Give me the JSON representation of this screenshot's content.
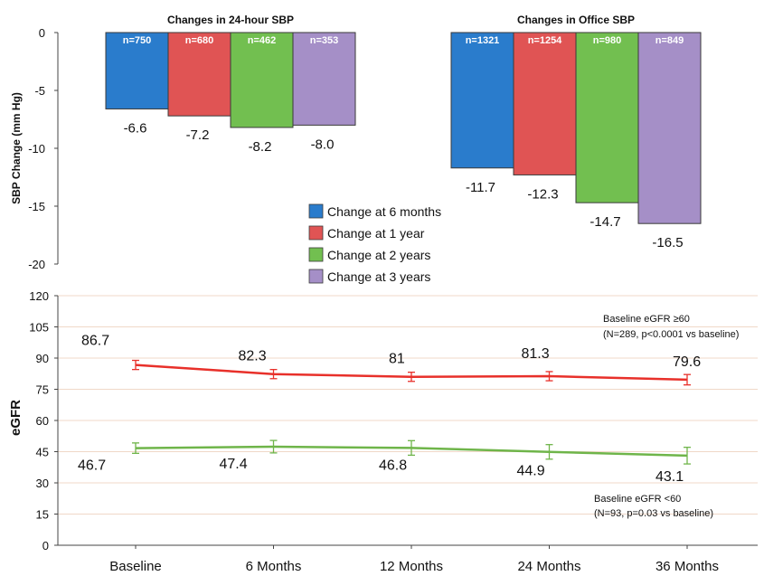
{
  "chart_data": [
    {
      "type": "bar",
      "ylabel": "SBP Change (mm Hg)",
      "ylim": [
        -20,
        0
      ],
      "yticks": [
        0,
        -5,
        -10,
        -15,
        -20
      ],
      "legend_position": "center",
      "series": [
        {
          "name": "Change at 6 months",
          "color": "#2a7ccc"
        },
        {
          "name": "Change at 1 year",
          "color": "#e05454"
        },
        {
          "name": "Change at 2 years",
          "color": "#72bf50"
        },
        {
          "name": "Change at 3 years",
          "color": "#a58fc7"
        }
      ],
      "groups": [
        {
          "title": "Changes in 24-hour SBP",
          "values": [
            -6.6,
            -7.2,
            -8.2,
            -8.0
          ],
          "value_labels": [
            "-6.6",
            "-7.2",
            "-8.2",
            "-8.0"
          ],
          "n_labels": [
            "n=750",
            "n=680",
            "n=462",
            "n=353"
          ]
        },
        {
          "title": "Changes in Office SBP",
          "values": [
            -11.7,
            -12.3,
            -14.7,
            -16.5
          ],
          "value_labels": [
            "-11.7",
            "-12.3",
            "-14.7",
            "-16.5"
          ],
          "n_labels": [
            "n=1321",
            "n=1254",
            "n=980",
            "n=849"
          ]
        }
      ]
    },
    {
      "type": "line",
      "ylabel": "eGFR",
      "ylim": [
        0,
        120
      ],
      "yticks": [
        0,
        15,
        30,
        45,
        60,
        75,
        90,
        105,
        120
      ],
      "categories": [
        "Baseline",
        "6 Months",
        "12 Months",
        "24 Months",
        "36 Months"
      ],
      "grid": true,
      "series": [
        {
          "name": "Baseline eGFR ≥60",
          "note": "(N=289, p<0.0001 vs baseline)",
          "color": "#e8302a",
          "values": [
            86.7,
            82.3,
            81,
            81.3,
            79.6
          ],
          "value_labels": [
            "86.7",
            "82.3",
            "81",
            "81.3",
            "79.6"
          ],
          "error": [
            2.2,
            2.2,
            2.2,
            2.2,
            2.5
          ]
        },
        {
          "name": "Baseline eGFR <60",
          "note": "(N=93, p=0.03 vs baseline)",
          "color": "#6fb54a",
          "values": [
            46.7,
            47.4,
            46.8,
            44.9,
            43.1
          ],
          "value_labels": [
            "46.7",
            "47.4",
            "46.8",
            "44.9",
            "43.1"
          ],
          "error": [
            2.5,
            3.0,
            3.5,
            3.5,
            4.0
          ]
        }
      ]
    }
  ]
}
